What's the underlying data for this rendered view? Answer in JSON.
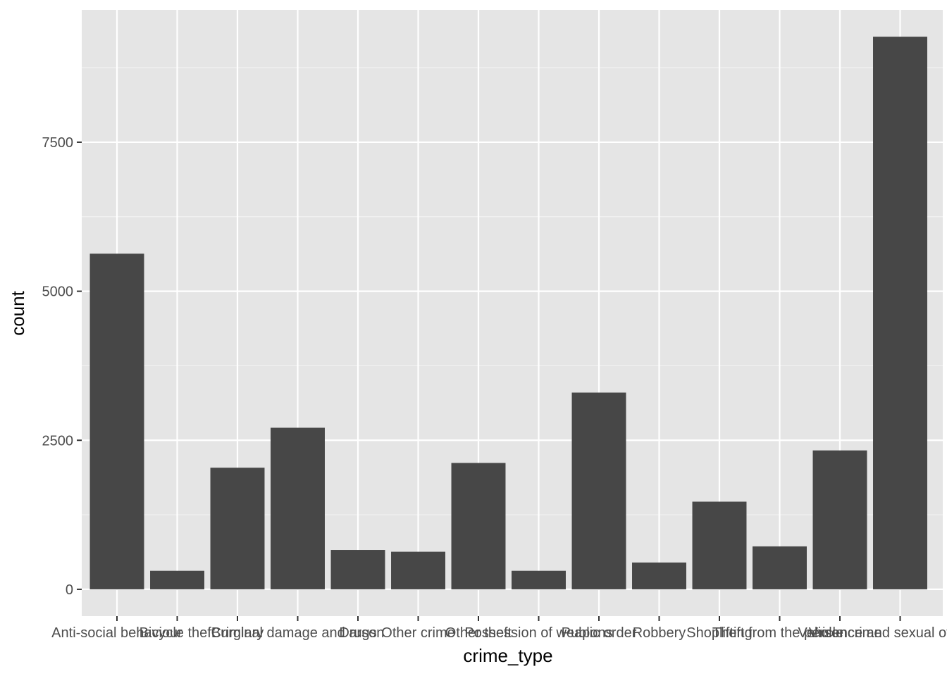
{
  "chart_data": {
    "type": "bar",
    "xlabel": "crime_type",
    "ylabel": "count",
    "categories": [
      "Anti-social behaviour",
      "Bicycle theft",
      "Burglary",
      "Criminal damage and arson",
      "Drugs",
      "Other crime",
      "Other theft",
      "Possession of weapons",
      "Public order",
      "Robbery",
      "Shoplifting",
      "Theft from the person",
      "Vehicle crime",
      "Violence and sexual offences"
    ],
    "values": [
      5630,
      310,
      2040,
      2710,
      660,
      630,
      2120,
      310,
      3300,
      450,
      1470,
      720,
      2330,
      9270
    ],
    "ylim": [
      -450,
      9720
    ],
    "yticks": [
      0,
      2500,
      5000,
      7500
    ],
    "grid": true,
    "legend": "none",
    "colors": {
      "bar": "#474747",
      "panel": "#e5e5e5",
      "grid_major": "#ffffff",
      "grid_minor": "#f2f2f2"
    }
  }
}
